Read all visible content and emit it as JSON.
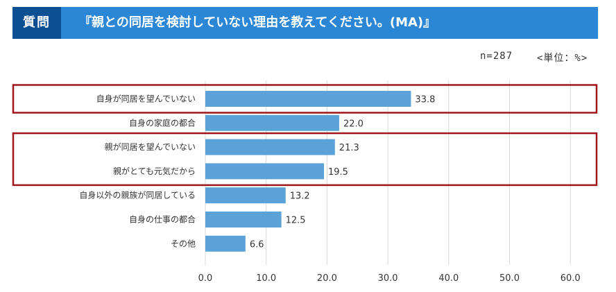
{
  "header": {
    "tag": "質問",
    "title": "『親との同居を検討していない理由を教えてください。(MA)』"
  },
  "meta": {
    "n": "n=287",
    "unit": "<単位：%>"
  },
  "colors": {
    "header_bg": "#2b86d6",
    "tag_bg": "#0d4f93",
    "bar": "#5aa2d8",
    "highlight": "#a0151c",
    "grid": "#d9d9d9"
  },
  "chart_data": {
    "type": "bar",
    "orientation": "horizontal",
    "categories": [
      "自身が同居を望んでいない",
      "自身の家庭の都合",
      "親が同居を望んでいない",
      "親がとても元気だから",
      "自身以外の親族が同居している",
      "自身の仕事の都合",
      "その他"
    ],
    "values": [
      33.8,
      22.0,
      21.3,
      19.5,
      13.2,
      12.5,
      6.6
    ],
    "value_labels": [
      "33.8",
      "22.0",
      "21.3",
      "19.5",
      "13.2",
      "12.5",
      "6.6"
    ],
    "xlim": [
      0,
      60
    ],
    "xticks": [
      0,
      10,
      20,
      30,
      40,
      50,
      60
    ],
    "xtick_labels": [
      "0.0",
      "10.0",
      "20.0",
      "30.0",
      "40.0",
      "50.0",
      "60.0"
    ],
    "highlight_groups": [
      [
        0
      ],
      [
        2,
        3
      ]
    ],
    "grid": true
  }
}
